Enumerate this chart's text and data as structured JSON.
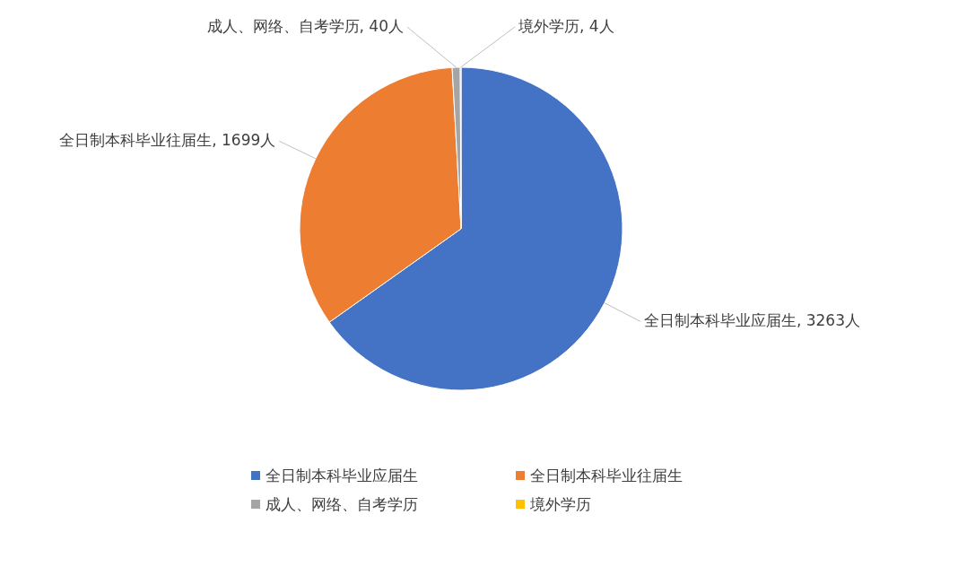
{
  "chart_data": {
    "type": "pie",
    "categories": [
      "全日制本科毕业应届生",
      "全日制本科毕业往届生",
      "成人、网络、自考学历",
      "境外学历"
    ],
    "values": [
      3263,
      1699,
      40,
      4
    ],
    "colors": [
      "#4472c4",
      "#ed7d31",
      "#a5a5a5",
      "#ffc000"
    ],
    "value_labels": [
      ", 3263人",
      ", 1699人",
      ", 40人",
      ", 4人"
    ],
    "legend": "bottom"
  }
}
